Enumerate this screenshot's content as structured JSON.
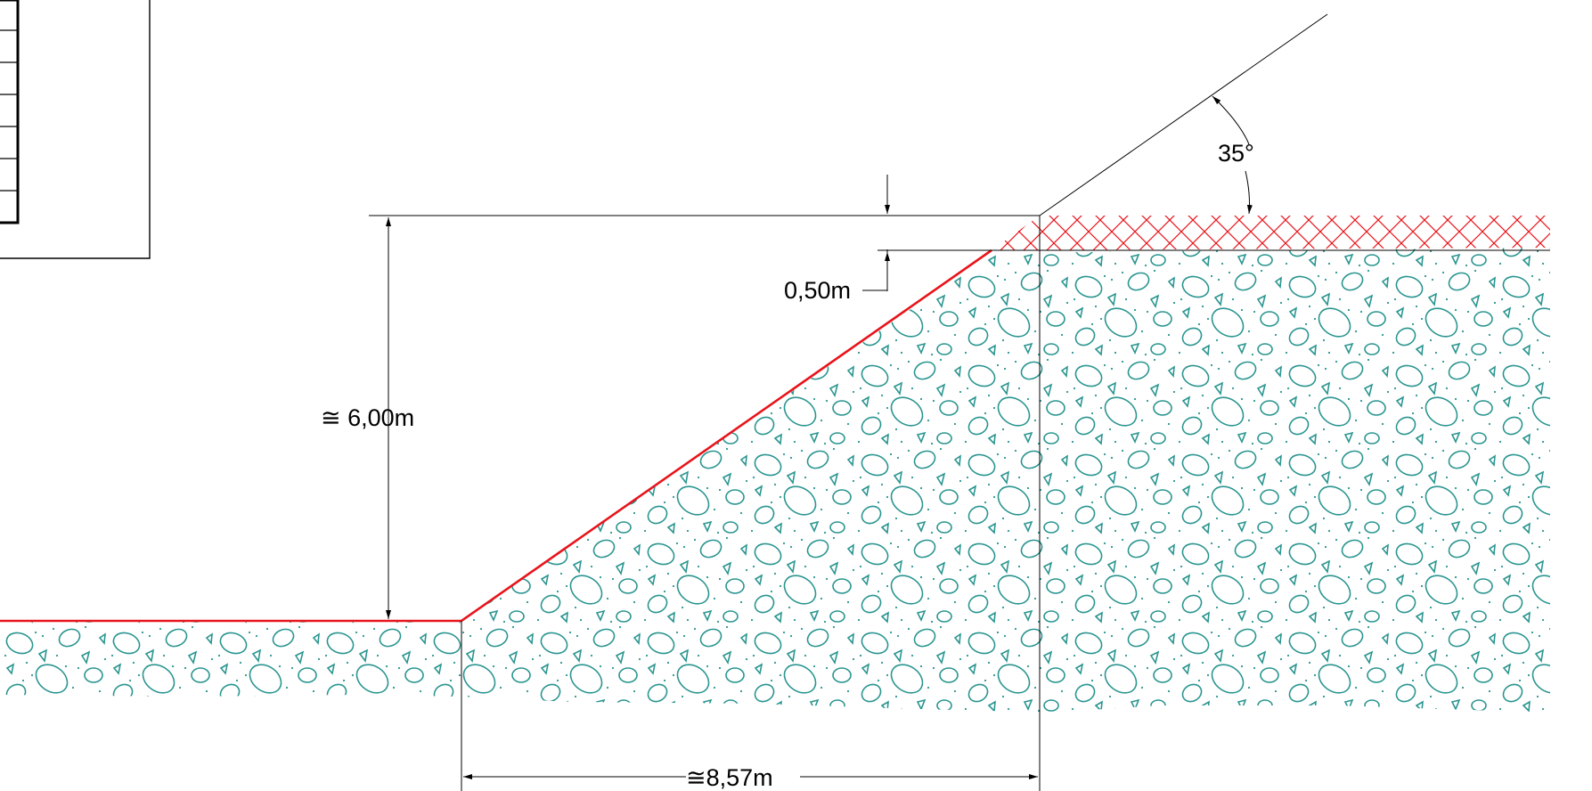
{
  "drawing": {
    "dimensions": {
      "height_label": "≅ 6,00m",
      "base_label": "≅8,57m",
      "topsoil_label": "0,50m",
      "angle_label": "35°"
    },
    "colors": {
      "line": "#000000",
      "slope_line": "#e8141b",
      "topsoil_hatch": "#e8141b",
      "gravel_hatch": "#2a9590"
    }
  }
}
